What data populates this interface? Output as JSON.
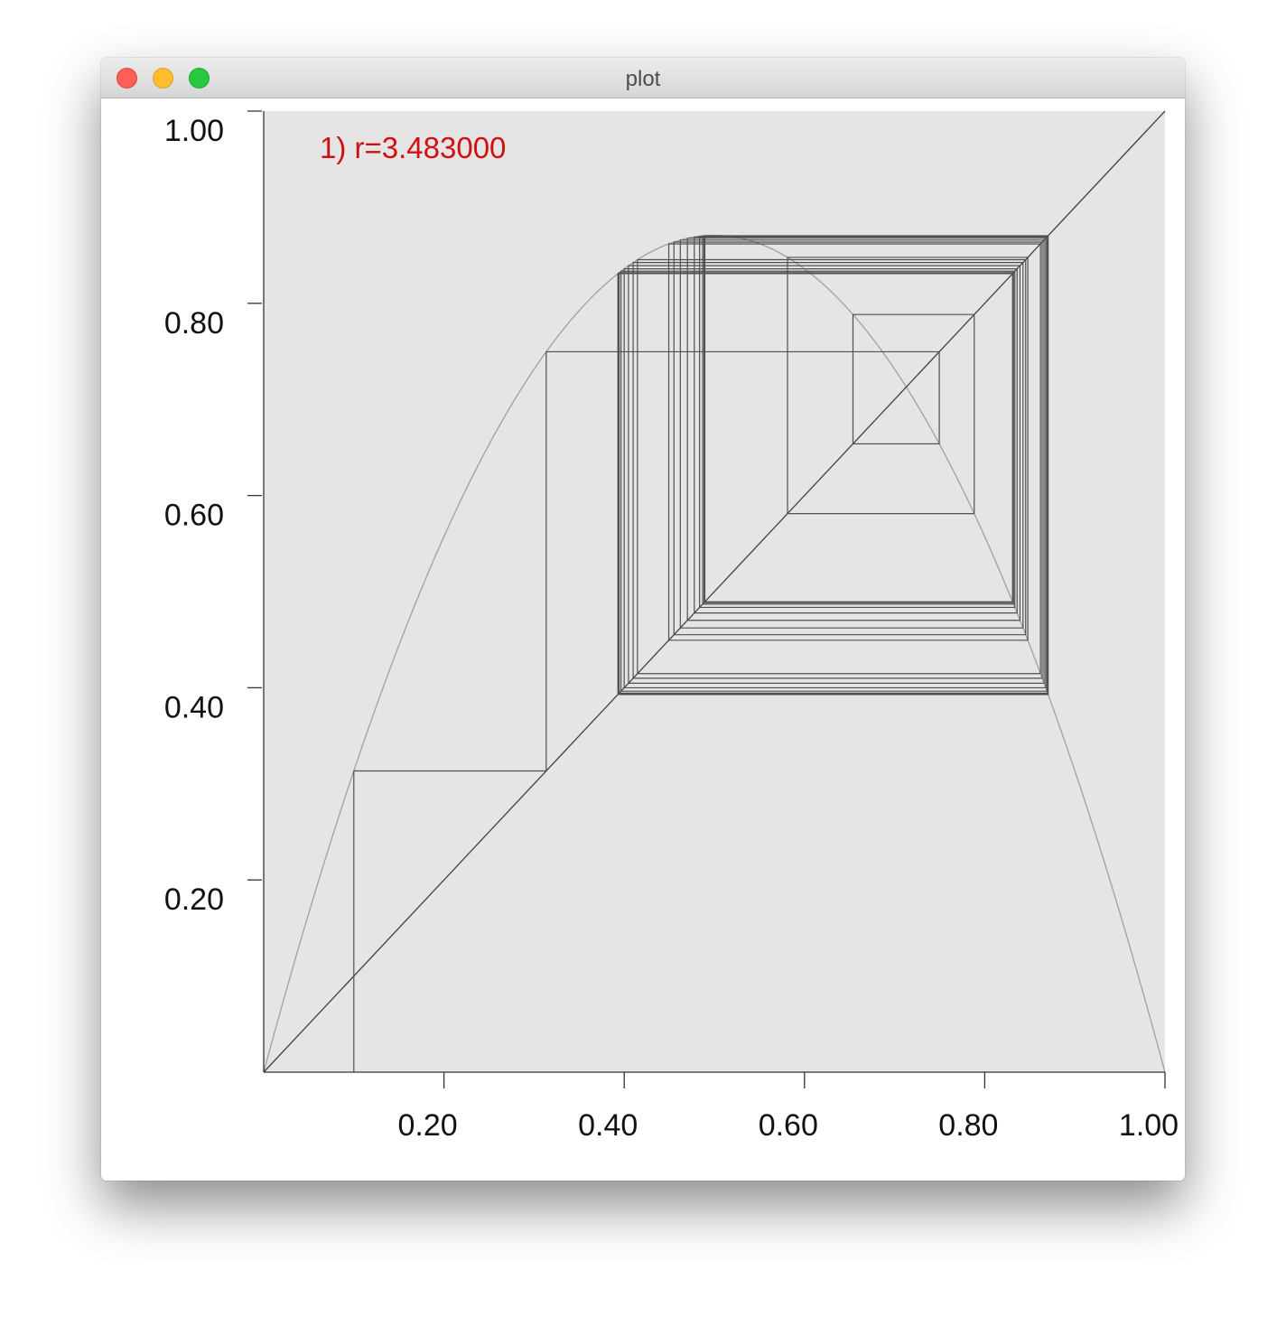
{
  "window": {
    "title": "plot"
  },
  "chart_data": {
    "type": "line",
    "title": "",
    "annotation": "1) r=3.483000",
    "annotation_color": "#d01010",
    "xlim": [
      0,
      1
    ],
    "ylim": [
      0,
      1
    ],
    "x_ticks": [
      0.2,
      0.4,
      0.6,
      0.8,
      1.0
    ],
    "x_tick_labels": [
      "0.20",
      "0.40",
      "0.60",
      "0.80",
      "1.00"
    ],
    "y_ticks": [
      0.2,
      0.4,
      0.6,
      0.8,
      1.0
    ],
    "y_tick_labels": [
      "0.20",
      "0.40",
      "0.60",
      "0.80",
      "1.00"
    ],
    "r": 3.483,
    "x0": 0.1,
    "iterations": 60,
    "series": [
      {
        "kind": "logistic_map",
        "color": "#a0a0a0"
      },
      {
        "kind": "identity",
        "color": "#404040"
      },
      {
        "kind": "cobweb",
        "color": "#505050"
      }
    ],
    "plot_background": "#e5e5e5"
  }
}
